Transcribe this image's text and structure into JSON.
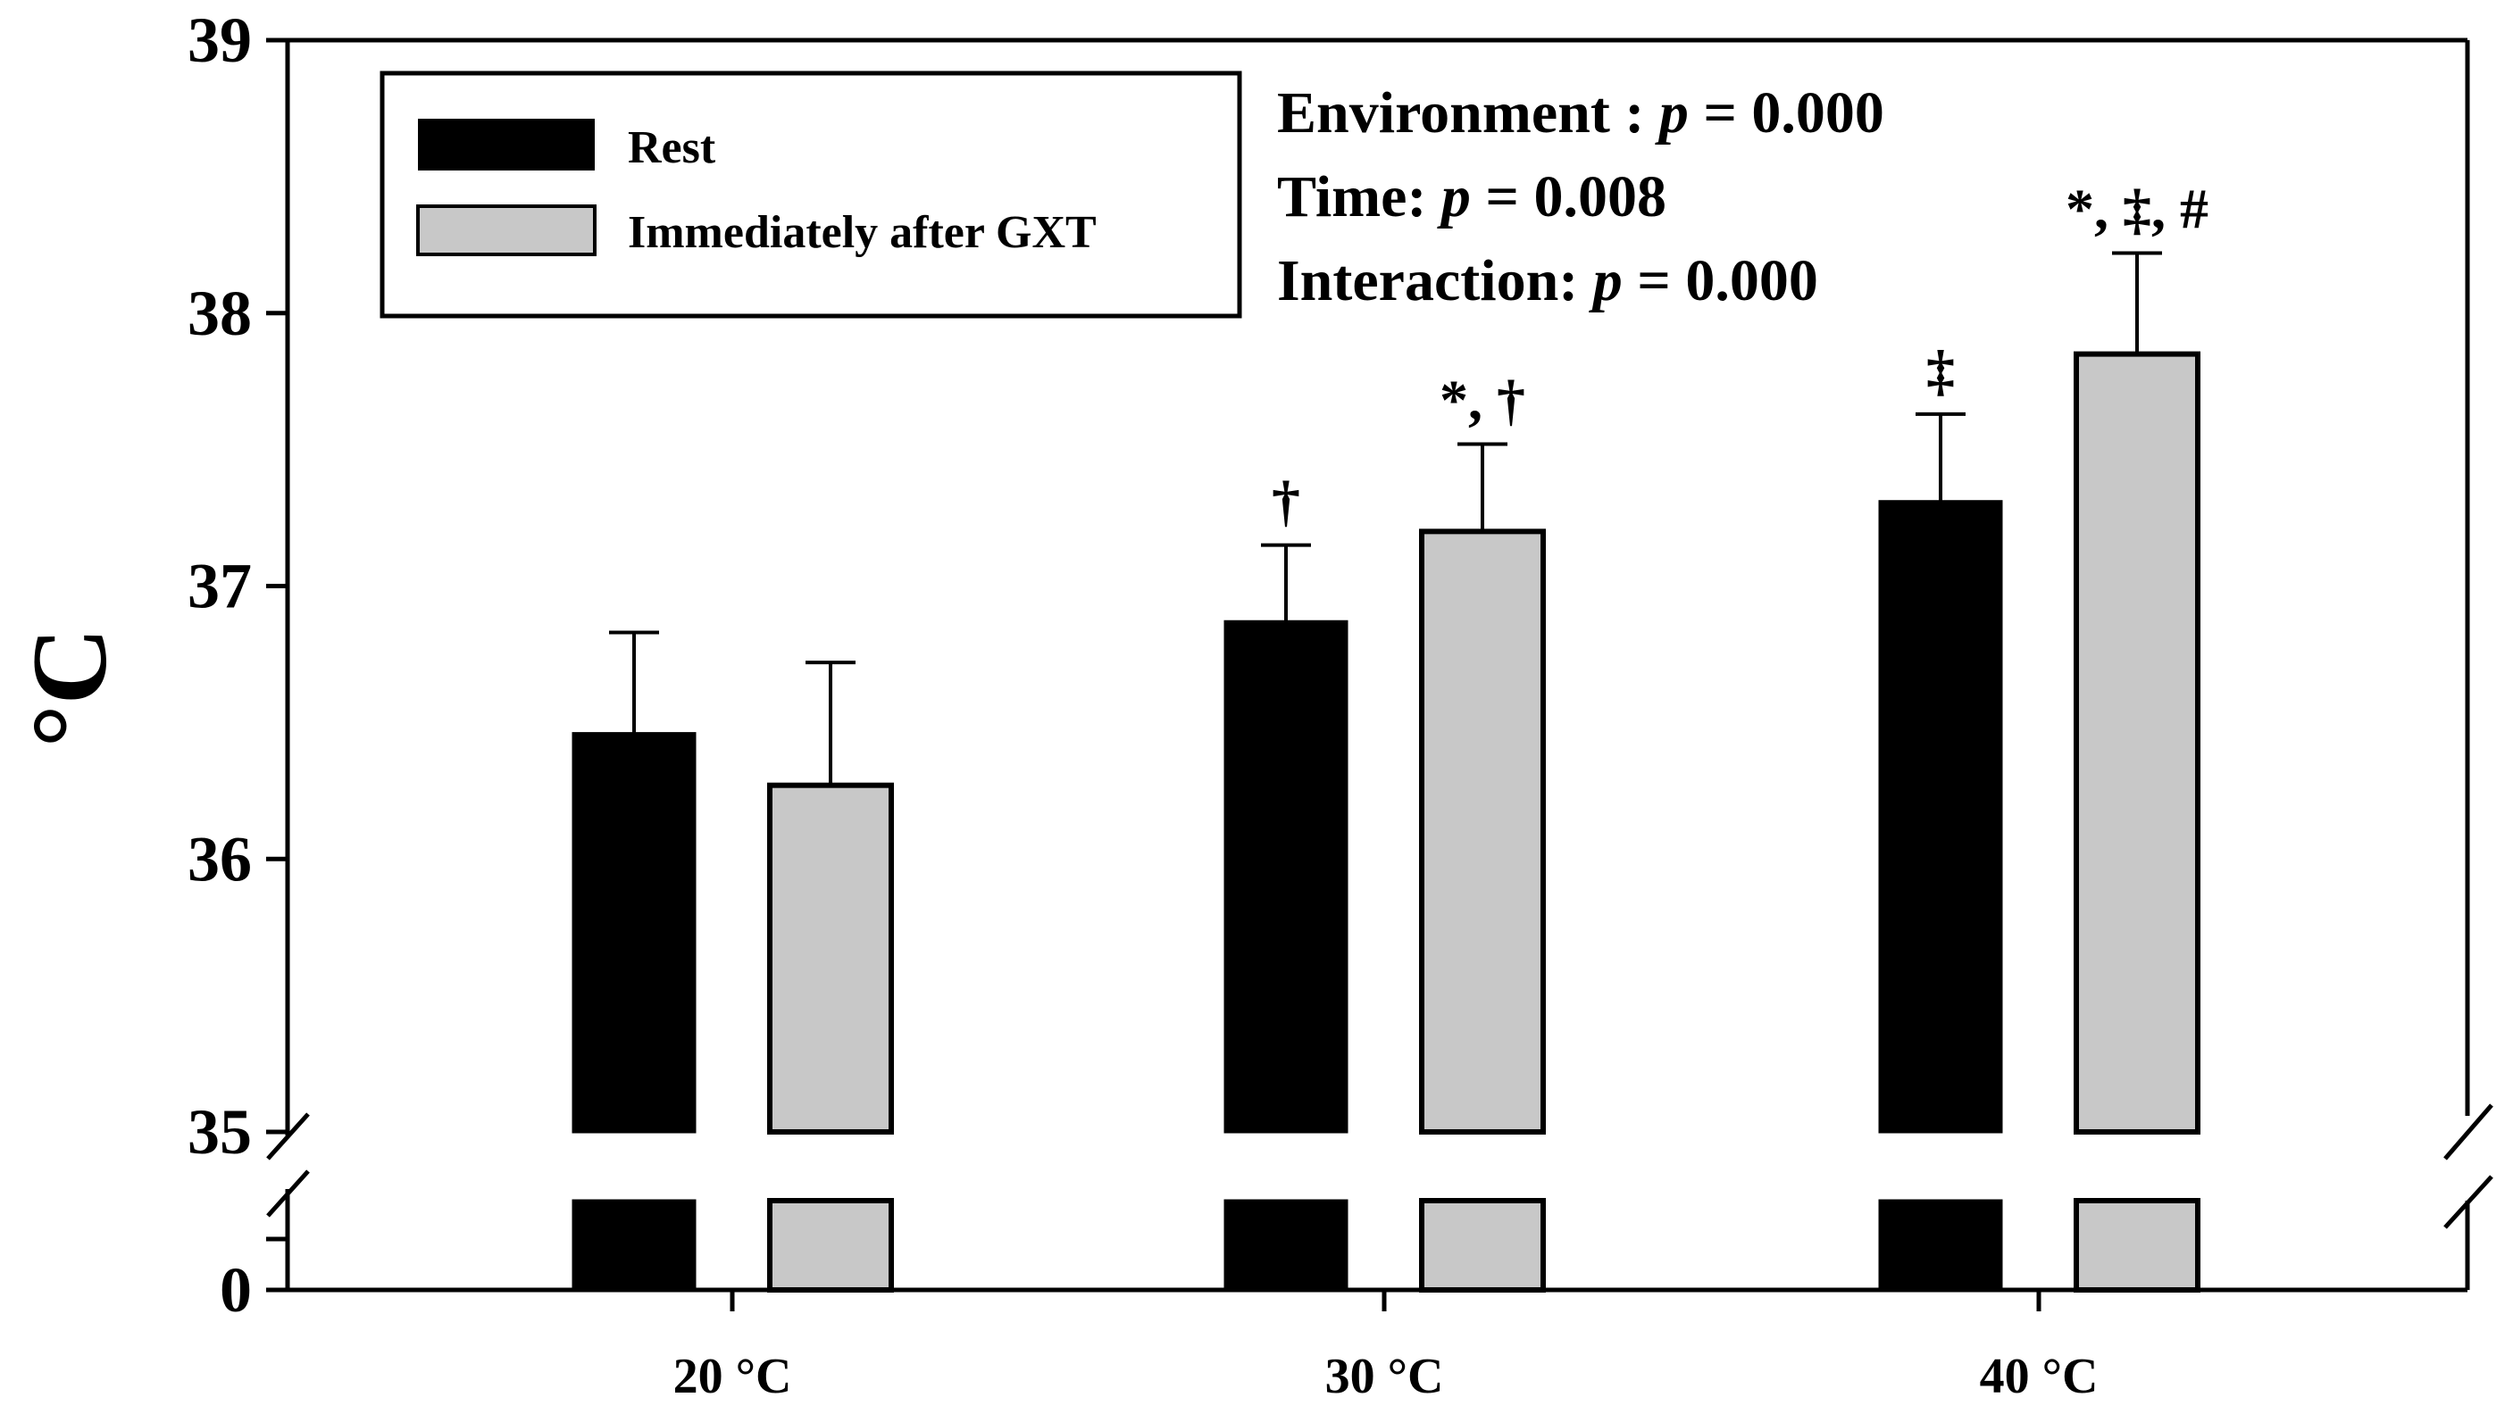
{
  "chart_data": {
    "type": "bar",
    "ylabel": "°C",
    "categories": [
      "20 °C",
      "30 °C",
      "40 °C"
    ],
    "series": [
      {
        "name": "Rest",
        "color": "#000000",
        "values": [
          36.46,
          36.87,
          37.31
        ],
        "errors": [
          0.37,
          0.28,
          0.32
        ],
        "annotations": [
          "",
          "†",
          "‡"
        ]
      },
      {
        "name": "Immediately after GXT",
        "color": "#c8c8c8",
        "values": [
          36.27,
          37.2,
          37.85
        ],
        "errors": [
          0.45,
          0.32,
          0.37
        ],
        "annotations": [
          "",
          "*, †",
          "*, ‡, #"
        ]
      }
    ],
    "yticks": [
      0,
      35,
      36,
      37,
      38,
      39
    ],
    "ylim": [
      35,
      39
    ],
    "axis_break": {
      "lower": 0,
      "upper": 35
    },
    "grid": false,
    "legend_position": "top-left",
    "stats": [
      {
        "label": "Environment : ",
        "p": "p",
        "value": " = 0.000"
      },
      {
        "label": "Time: ",
        "p": "p",
        "value": " = 0.008"
      },
      {
        "label": "Interaction: ",
        "p": "p",
        "value": " = 0.000"
      }
    ]
  }
}
